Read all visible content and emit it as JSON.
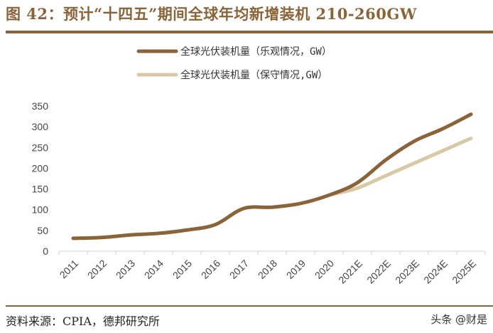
{
  "title": "图 42：预计“十四五”期间全球年均新增装机 210-260GW",
  "source": "资料来源：CPIA，德邦研究所",
  "watermark": "头条 @财是",
  "chart_data": {
    "type": "line",
    "title": "",
    "xlabel": "",
    "ylabel": "",
    "ylim": [
      0,
      350
    ],
    "yticks": [
      0,
      50,
      100,
      150,
      200,
      250,
      300,
      350
    ],
    "grid": false,
    "legend_position": "top-center",
    "categories": [
      "2011",
      "2012",
      "2013",
      "2014",
      "2015",
      "2016",
      "2017",
      "2018",
      "2019",
      "2020",
      "2021E",
      "2022E",
      "2023E",
      "2024E",
      "2025E"
    ],
    "series": [
      {
        "name": "全球光伏装机量（乐观情况，GW）",
        "color": "#8a6438",
        "values": [
          31,
          33,
          39,
          43,
          51,
          64,
          103,
          106,
          115,
          135,
          165,
          220,
          265,
          295,
          330
        ]
      },
      {
        "name": "全球光伏装机量（保守情况,GW）",
        "color": "#d9c8a6",
        "values": [
          null,
          null,
          null,
          null,
          null,
          null,
          null,
          null,
          null,
          135,
          152,
          182,
          212,
          242,
          272
        ]
      }
    ]
  }
}
